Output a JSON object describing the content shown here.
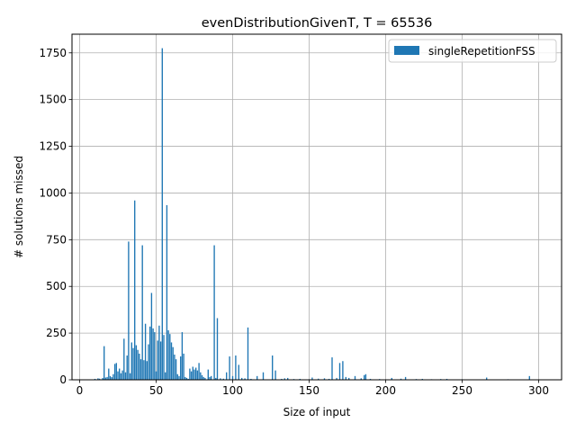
{
  "chart_data": {
    "type": "bar",
    "title": "evenDistributionGivenT, T = 65536",
    "xlabel": "Size of input",
    "ylabel": "# solutions missed",
    "xlim": [
      -5,
      315
    ],
    "ylim": [
      0,
      1850
    ],
    "xticks": [
      0,
      50,
      100,
      150,
      200,
      250,
      300
    ],
    "yticks": [
      0,
      250,
      500,
      750,
      1000,
      1250,
      1500,
      1750
    ],
    "grid": true,
    "legend_position": "top-right",
    "series": [
      {
        "name": "singleRepetitionFSS",
        "color": "#1f77b4",
        "bar_width": 0.8,
        "x": [
          10,
          12,
          13,
          15,
          16,
          17,
          18,
          19,
          20,
          21,
          22,
          23,
          24,
          25,
          26,
          27,
          28,
          29,
          30,
          31,
          32,
          33,
          34,
          35,
          36,
          37,
          38,
          39,
          40,
          41,
          42,
          43,
          44,
          45,
          46,
          47,
          48,
          49,
          50,
          51,
          52,
          53,
          54,
          55,
          56,
          57,
          58,
          59,
          60,
          61,
          62,
          63,
          64,
          65,
          66,
          67,
          68,
          69,
          70,
          71,
          72,
          73,
          74,
          75,
          76,
          77,
          78,
          79,
          80,
          81,
          82,
          84,
          85,
          86,
          88,
          89,
          90,
          92,
          94,
          96,
          98,
          100,
          102,
          104,
          106,
          108,
          110,
          112,
          116,
          120,
          126,
          128,
          132,
          134,
          136,
          140,
          144,
          150,
          152,
          156,
          160,
          163,
          165,
          168,
          170,
          172,
          174,
          176,
          180,
          184,
          186,
          187,
          190,
          196,
          204,
          210,
          213,
          220,
          224,
          230,
          236,
          240,
          250,
          256,
          266,
          280,
          294
        ],
        "values": [
          5,
          8,
          6,
          10,
          180,
          12,
          15,
          60,
          20,
          14,
          30,
          85,
          90,
          45,
          60,
          35,
          50,
          220,
          40,
          130,
          740,
          35,
          200,
          170,
          960,
          185,
          160,
          140,
          110,
          720,
          105,
          300,
          100,
          190,
          285,
          465,
          275,
          255,
          45,
          210,
          290,
          205,
          1775,
          240,
          40,
          935,
          265,
          245,
          200,
          175,
          135,
          110,
          30,
          20,
          125,
          255,
          140,
          15,
          10,
          5,
          60,
          45,
          70,
          55,
          65,
          50,
          90,
          40,
          25,
          15,
          10,
          55,
          15,
          20,
          720,
          10,
          330,
          8,
          6,
          40,
          125,
          20,
          130,
          80,
          10,
          8,
          280,
          5,
          20,
          40,
          130,
          50,
          5,
          8,
          10,
          4,
          5,
          3,
          12,
          6,
          8,
          5,
          120,
          10,
          90,
          100,
          15,
          10,
          20,
          8,
          25,
          30,
          5,
          4,
          10,
          6,
          15,
          4,
          5,
          3,
          4,
          5,
          3,
          2,
          12,
          3,
          20
        ]
      }
    ]
  }
}
